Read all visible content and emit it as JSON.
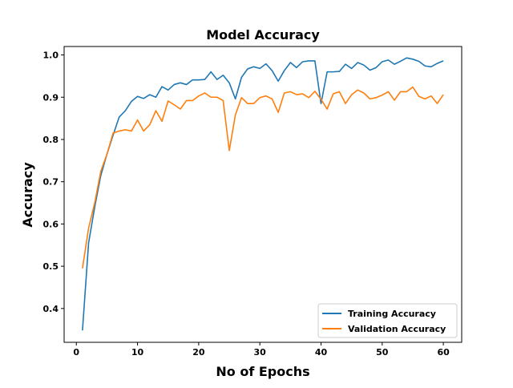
{
  "chart_data": {
    "type": "line",
    "title": "Model Accuracy",
    "xlabel": "No of Epochs",
    "ylabel": "Accuracy",
    "xlim": [
      -2,
      63
    ],
    "ylim": [
      0.32,
      1.02
    ],
    "xticks": [
      0,
      10,
      20,
      30,
      40,
      50,
      60
    ],
    "yticks": [
      0.4,
      0.5,
      0.6,
      0.7,
      0.8,
      0.9,
      1.0
    ],
    "grid": false,
    "legend_position": "lower-right",
    "x": [
      1,
      2,
      3,
      4,
      5,
      6,
      7,
      8,
      9,
      10,
      11,
      12,
      13,
      14,
      15,
      16,
      17,
      18,
      19,
      20,
      21,
      22,
      23,
      24,
      25,
      26,
      27,
      28,
      29,
      30,
      31,
      32,
      33,
      34,
      35,
      36,
      37,
      38,
      39,
      40,
      41,
      42,
      43,
      44,
      45,
      46,
      47,
      48,
      49,
      50,
      51,
      52,
      53,
      54,
      55,
      56,
      57,
      58,
      59,
      60
    ],
    "series": [
      {
        "name": "Training Accuracy",
        "color": "#1f77b4",
        "values": [
          0.348,
          0.555,
          0.64,
          0.715,
          0.765,
          0.81,
          0.853,
          0.868,
          0.89,
          0.902,
          0.897,
          0.906,
          0.9,
          0.925,
          0.917,
          0.93,
          0.934,
          0.93,
          0.941,
          0.941,
          0.942,
          0.96,
          0.942,
          0.952,
          0.934,
          0.896,
          0.947,
          0.967,
          0.972,
          0.968,
          0.979,
          0.963,
          0.938,
          0.963,
          0.982,
          0.97,
          0.984,
          0.986,
          0.986,
          0.885,
          0.96,
          0.96,
          0.961,
          0.978,
          0.968,
          0.982,
          0.976,
          0.964,
          0.97,
          0.984,
          0.988,
          0.978,
          0.985,
          0.993,
          0.99,
          0.985,
          0.974,
          0.972,
          0.98,
          0.986
        ]
      },
      {
        "name": "Validation Accuracy",
        "color": "#ff7f0e",
        "values": [
          0.495,
          0.59,
          0.65,
          0.725,
          0.765,
          0.815,
          0.82,
          0.823,
          0.82,
          0.846,
          0.82,
          0.835,
          0.868,
          0.843,
          0.891,
          0.882,
          0.872,
          0.892,
          0.892,
          0.903,
          0.91,
          0.9,
          0.9,
          0.892,
          0.774,
          0.858,
          0.899,
          0.885,
          0.885,
          0.899,
          0.903,
          0.896,
          0.864,
          0.91,
          0.913,
          0.906,
          0.908,
          0.899,
          0.914,
          0.895,
          0.872,
          0.908,
          0.913,
          0.885,
          0.906,
          0.917,
          0.91,
          0.896,
          0.899,
          0.905,
          0.913,
          0.893,
          0.913,
          0.913,
          0.924,
          0.902,
          0.896,
          0.903,
          0.885,
          0.906
        ]
      }
    ]
  }
}
